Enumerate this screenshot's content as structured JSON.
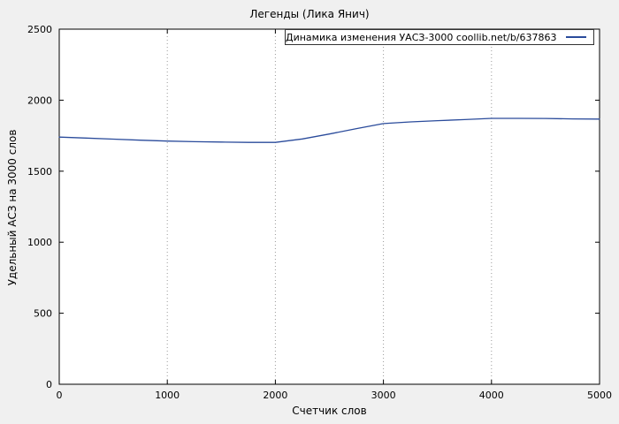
{
  "chart_data": {
    "type": "line",
    "title": "Легенды (Лика Янич)",
    "xlabel": "Счетчик слов",
    "ylabel": "Удельный АСЗ на 3000 слов",
    "xlim": [
      0,
      5000
    ],
    "ylim": [
      0,
      2500
    ],
    "xticks": [
      0,
      1000,
      2000,
      3000,
      4000,
      5000
    ],
    "yticks": [
      0,
      500,
      1000,
      1500,
      2000,
      2500
    ],
    "grid": "vertical-dotted",
    "legend_position": "top-right-inside",
    "colors": {
      "background": "#f0f0f0",
      "plot_background": "#ffffff",
      "axis": "#000000",
      "grid": "#999999"
    },
    "series": [
      {
        "name": "Динамика изменения УАСЗ-3000 coollib.net/b/637863",
        "color": "#2a4b9b",
        "x": [
          0,
          250,
          500,
          750,
          1000,
          1250,
          1500,
          1750,
          2000,
          2250,
          2500,
          2750,
          3000,
          3250,
          3500,
          3750,
          4000,
          4250,
          4500,
          4750,
          5000
        ],
        "y": [
          1740,
          1733,
          1726,
          1718,
          1712,
          1708,
          1705,
          1703,
          1703,
          1727,
          1762,
          1800,
          1835,
          1847,
          1856,
          1863,
          1872,
          1872,
          1871,
          1868,
          1867
        ]
      }
    ]
  }
}
